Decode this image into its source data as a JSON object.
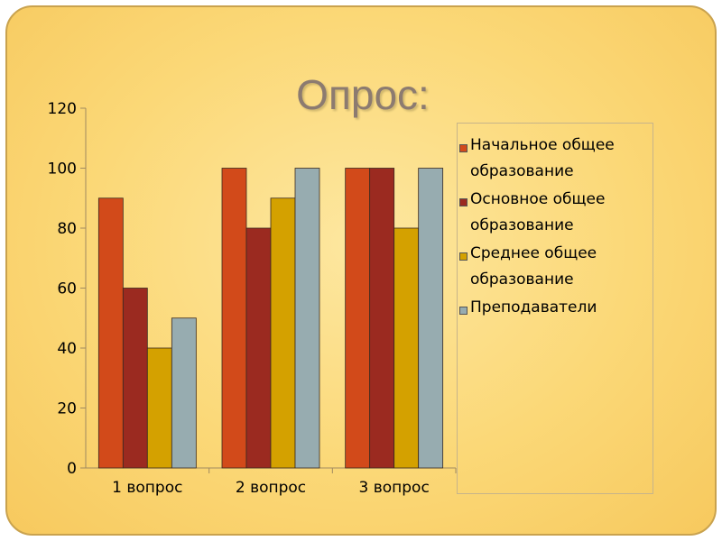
{
  "slide": {
    "title": "Опрос:"
  },
  "colors": [
    "#d24a1a",
    "#9b2a20",
    "#d4a100",
    "#97acb0"
  ],
  "chart_data": {
    "type": "bar",
    "categories": [
      "1 вопрос",
      "2 вопрос",
      "3 вопрос"
    ],
    "series": [
      {
        "name": "Начальное общее образование",
        "values": [
          90,
          100,
          100
        ]
      },
      {
        "name": "Основное общее образование",
        "values": [
          60,
          80,
          100
        ]
      },
      {
        "name": "Среднее общее образование",
        "values": [
          40,
          90,
          80
        ]
      },
      {
        "name": "Преподаватели",
        "values": [
          50,
          100,
          100
        ]
      }
    ],
    "yticks": [
      "0",
      "20",
      "40",
      "60",
      "80",
      "100",
      "120"
    ],
    "ylim": [
      0,
      120
    ],
    "grid": false,
    "legend_position": "right"
  }
}
